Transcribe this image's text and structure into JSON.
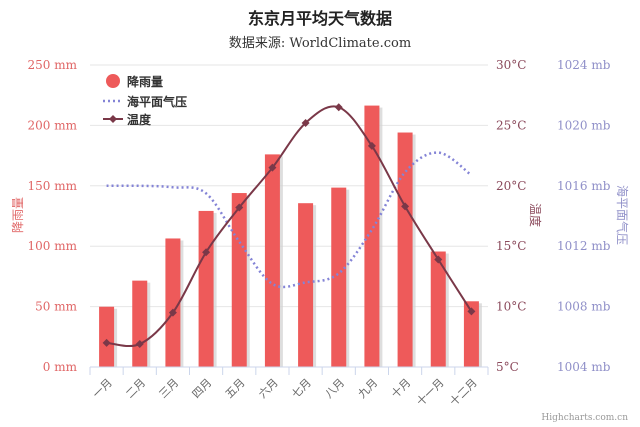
{
  "chart_data": {
    "type": "bar",
    "title": "东京月平均天气数据",
    "subtitle": "数据来源: WorldClimate.com",
    "categories": [
      "一月",
      "二月",
      "三月",
      "四月",
      "五月",
      "六月",
      "七月",
      "八月",
      "九月",
      "十月",
      "十一月",
      "十二月"
    ],
    "series": [
      {
        "name": "降雨量",
        "type": "bar",
        "axis": "rainfall",
        "values": [
          49.9,
          71.5,
          106.4,
          129.2,
          144.0,
          176.0,
          135.6,
          148.5,
          216.4,
          194.1,
          95.6,
          54.4
        ]
      },
      {
        "name": "海平面气压",
        "type": "line",
        "style": "dotted",
        "axis": "pressure",
        "values": [
          1016,
          1016,
          1015.9,
          1015.5,
          1012.3,
          1009.5,
          1009.6,
          1010.2,
          1013.1,
          1016.9,
          1018.2,
          1016.7
        ]
      },
      {
        "name": "温度",
        "type": "line",
        "style": "spline-with-diamond-markers",
        "axis": "temperature",
        "values": [
          7.0,
          6.9,
          9.5,
          14.5,
          18.2,
          21.5,
          25.2,
          26.5,
          23.3,
          18.3,
          13.9,
          9.6
        ]
      }
    ],
    "axes": {
      "rainfall": {
        "title": "降雨量",
        "unit": " mm",
        "min": 0,
        "max": 250,
        "ticks": [
          0,
          50,
          100,
          150,
          200,
          250
        ],
        "side": "left",
        "color": "#e06666"
      },
      "temperature": {
        "title": "温度",
        "unit": "°C",
        "min": 5,
        "max": 30,
        "ticks": [
          5,
          10,
          15,
          20,
          25,
          30
        ],
        "side": "right",
        "color": "#8b4a5c"
      },
      "pressure": {
        "title": "海平面气压",
        "unit": " mb",
        "min": 1004,
        "max": 1024,
        "ticks": [
          1004,
          1008,
          1012,
          1016,
          1020,
          1024
        ],
        "side": "right-outer",
        "color": "#8f8fc8"
      }
    },
    "legend": {
      "placement": "top-left-inside",
      "items": [
        "降雨量",
        "海平面气压",
        "温度"
      ]
    },
    "grid": true,
    "credits": "Highcharts.com.cn"
  },
  "colors": {
    "bar": "#ee5a5a",
    "bar_shadow": "#d0d0d0",
    "pressure": "#8484d6",
    "temperature": "#7a3848",
    "grid": "#e6e6e6"
  }
}
